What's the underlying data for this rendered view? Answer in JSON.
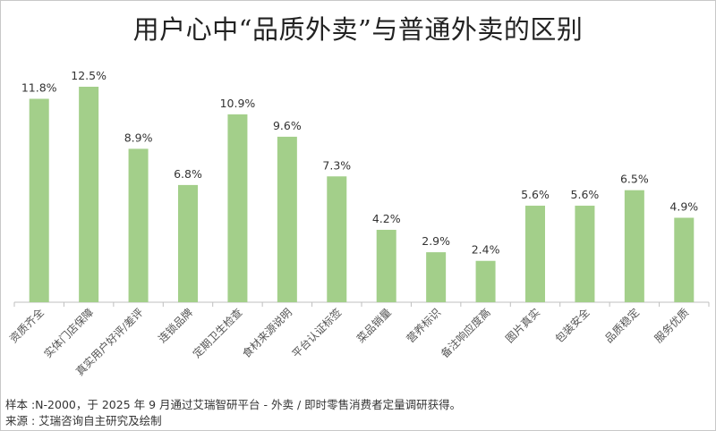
{
  "chart_data": {
    "type": "bar",
    "title": "用户心中“品质外卖”与普通外卖的区别",
    "categories": [
      "资质齐全",
      "实体门店保障",
      "真实用户好评/差评",
      "连锁品牌",
      "定期卫生检查",
      "食材来源说明",
      "平台认证标签",
      "菜品销量",
      "营养标识",
      "备注响应度高",
      "图片真实",
      "包装安全",
      "品质稳定",
      "服务优质"
    ],
    "values": [
      11.8,
      12.5,
      8.9,
      6.8,
      10.9,
      9.6,
      7.3,
      4.2,
      2.9,
      2.4,
      5.6,
      5.6,
      6.5,
      4.9
    ],
    "value_suffix": "%",
    "xlabel": "",
    "ylabel": "",
    "ylim": [
      0,
      12.5
    ],
    "grid": false,
    "legend": "none",
    "bar_color": "#a3cf8a"
  },
  "footer": {
    "sample": "样本 :N-2000，于 2025 年 9 月通过艾瑞智研平台 - 外卖 / 即时零售消费者定量调研获得。",
    "source": "来源 : 艾瑞咨询自主研究及绘制"
  }
}
